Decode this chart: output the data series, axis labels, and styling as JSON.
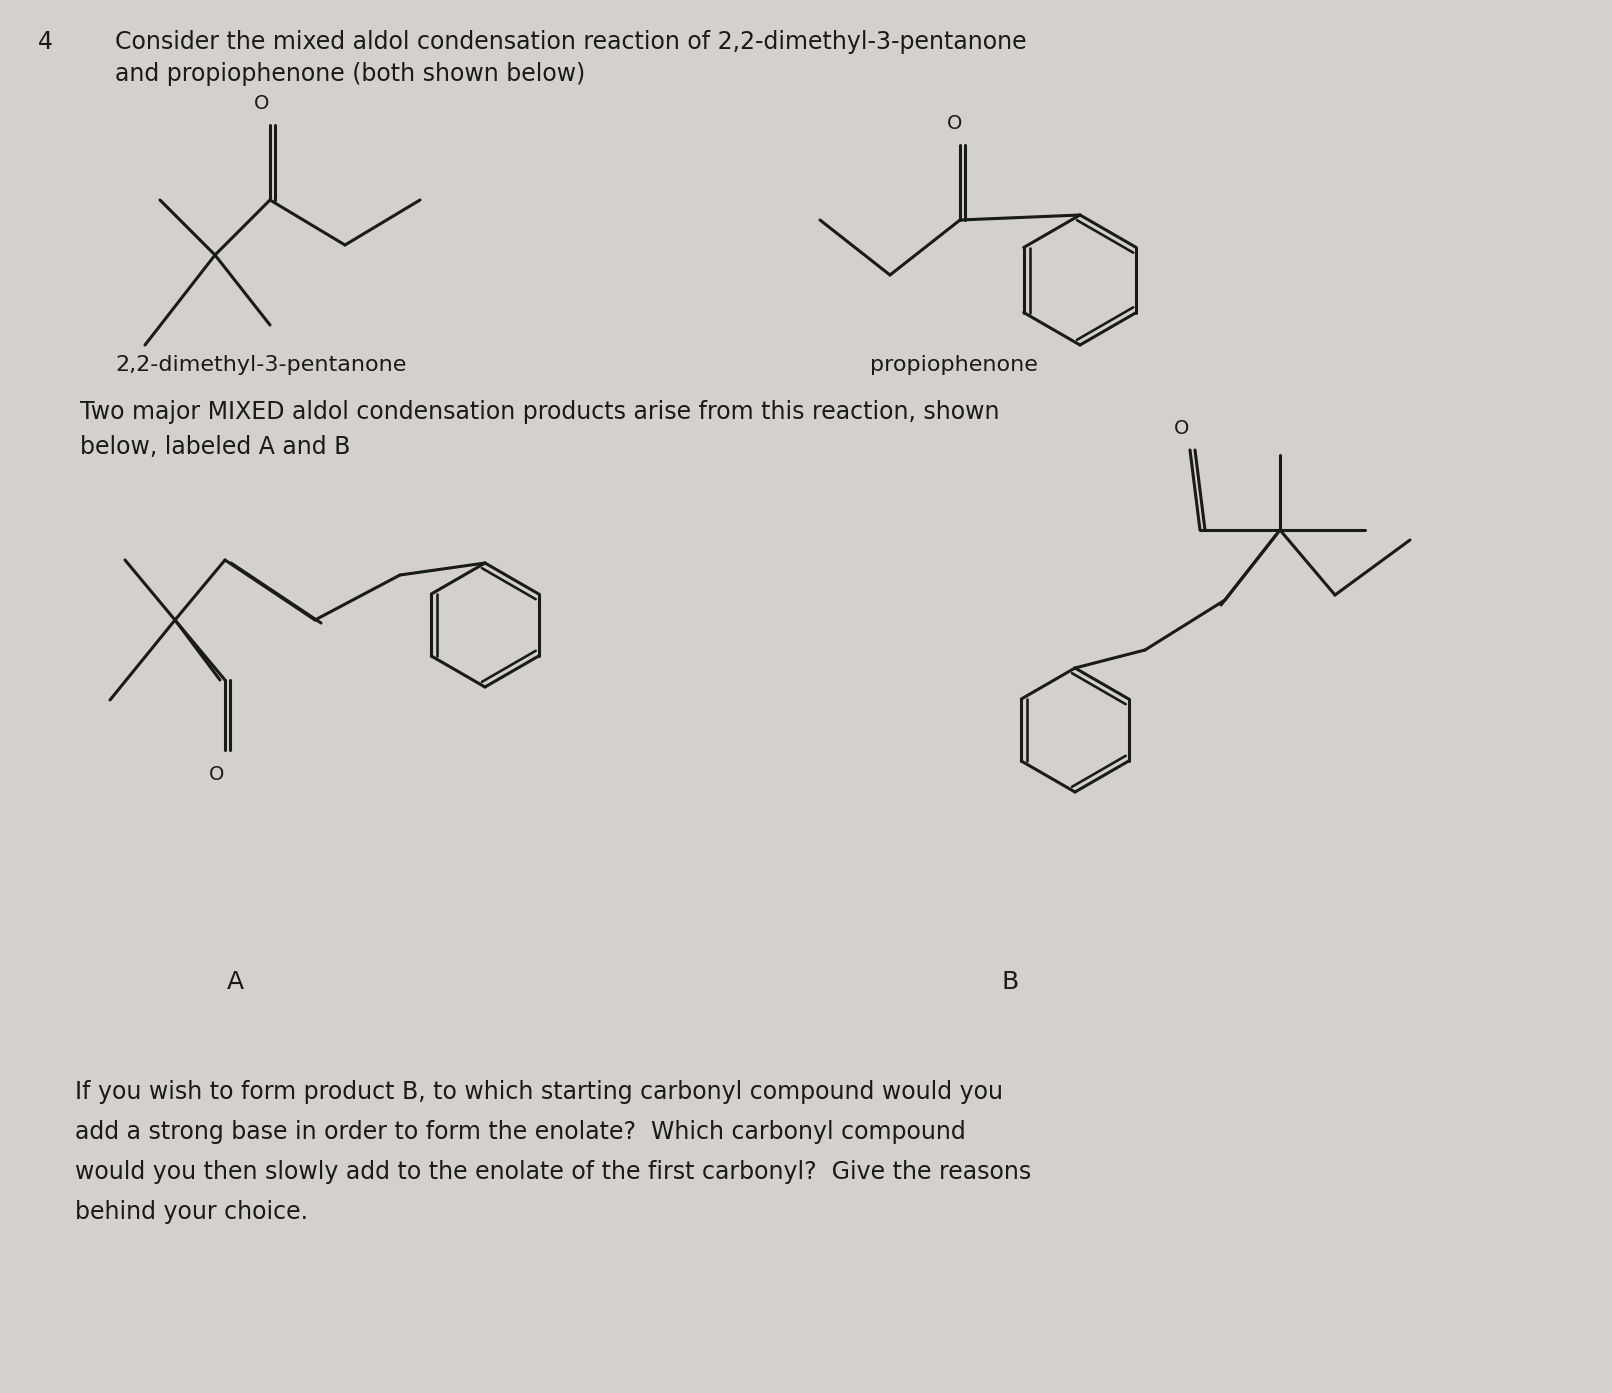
{
  "bg_color": "#d4d0cc",
  "text_color": "#1a1a1a",
  "line_color": "#1a1a1a",
  "line_width": 2.2,
  "title_num": "4",
  "title_line1": "Consider the mixed aldol condensation reaction of 2,2-dimethyl-3-pentanone",
  "title_line2": "and propiophenone (both shown below)",
  "label1": "2,2-dimethyl-3-pentanone",
  "label2": "propiophenone",
  "mid_text_line1": "Two major MIXED aldol condensation products arise from this reaction, shown",
  "mid_text_line2": "below, labeled A and B",
  "label_A": "A",
  "label_B": "B",
  "bottom_line1": "If you wish to form product B, to which starting carbonyl compound would you",
  "bottom_line2": "add a strong base in order to form the enolate?  Which carbonyl compound",
  "bottom_line3": "would you then slowly add to the enolate of the first carbonyl?  Give the reasons",
  "bottom_line4": "behind your choice.",
  "font_size_title": 17,
  "font_size_label": 16,
  "font_size_mid": 17,
  "font_size_bottom": 17
}
